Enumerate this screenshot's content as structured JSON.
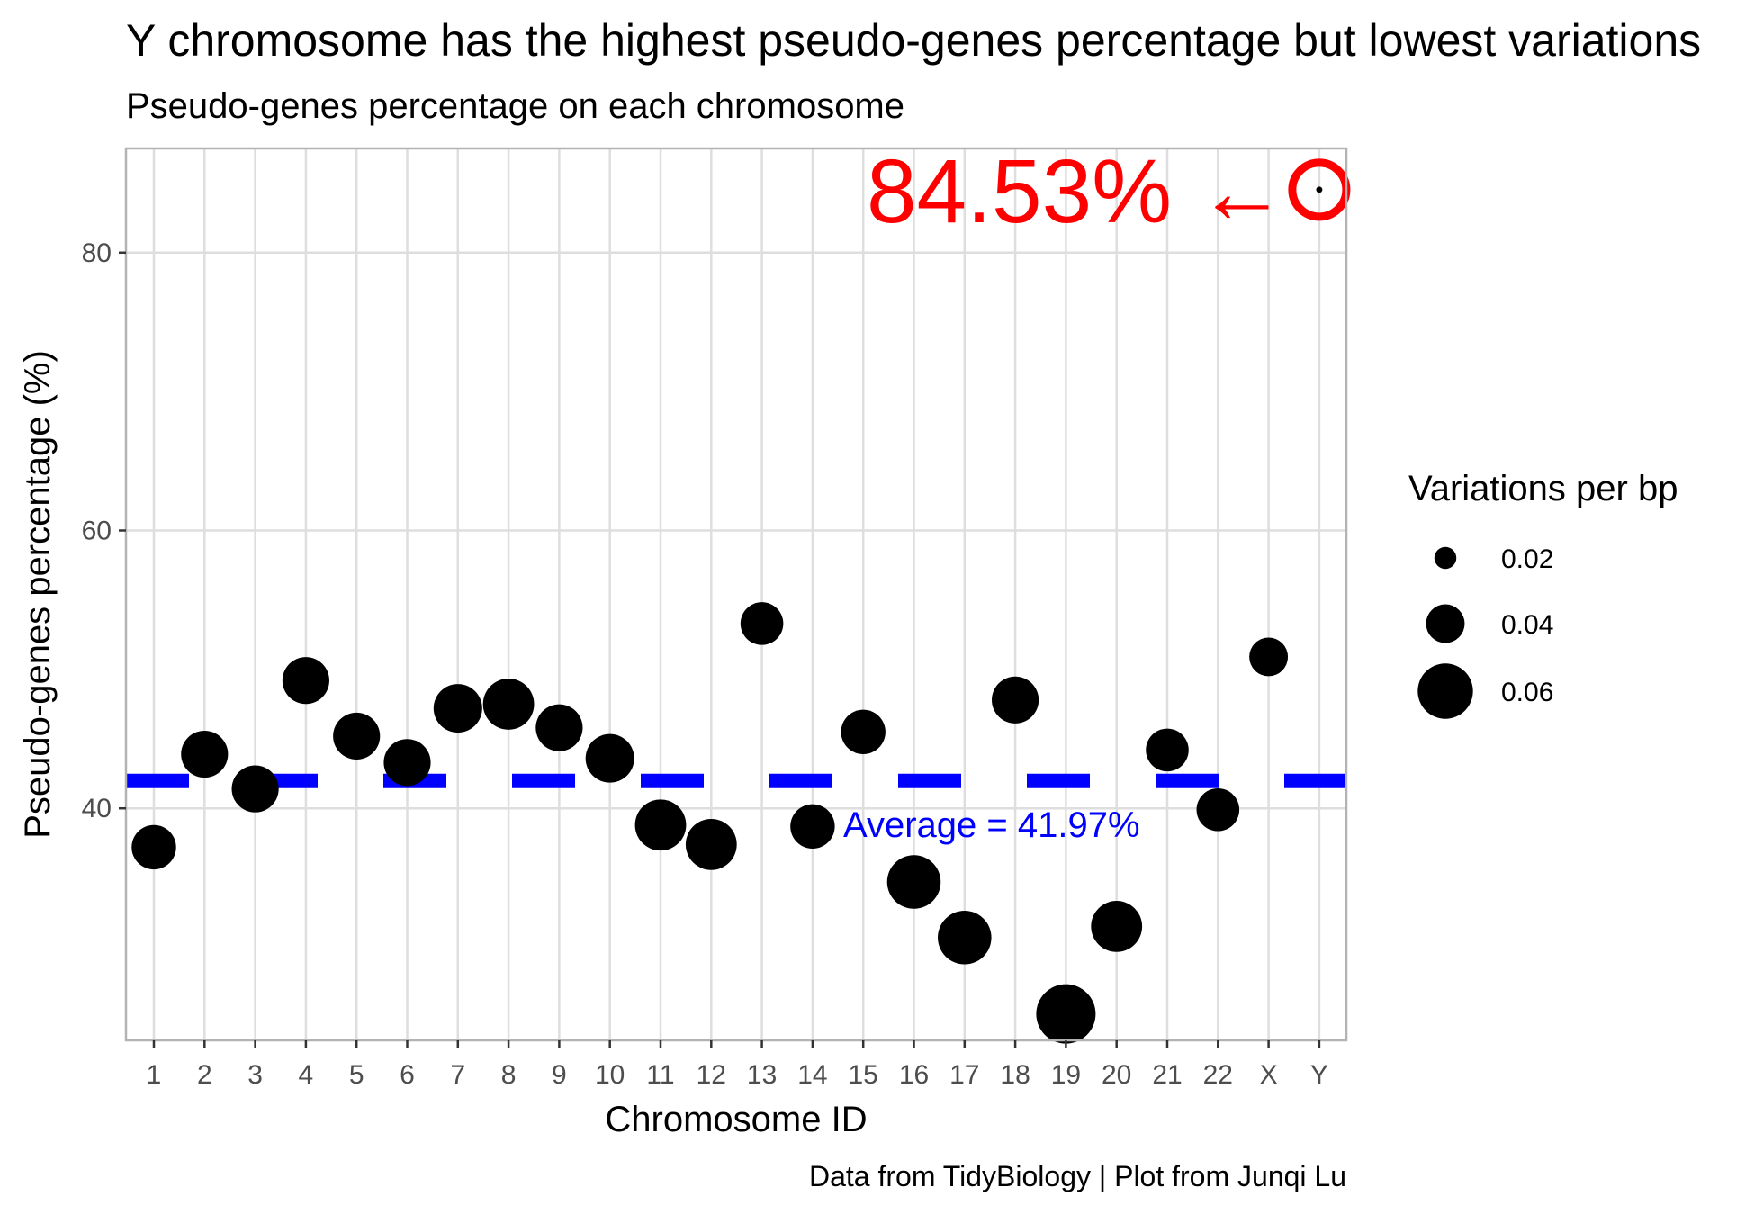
{
  "chart_data": {
    "type": "scatter",
    "title": "Y chromosome has the highest pseudo-genes percentage but lowest variations",
    "subtitle": "Pseudo-genes percentage on each chromosome",
    "xlabel": "Chromosome ID",
    "ylabel": "Pseudo-genes percentage (%)",
    "caption": "Data from TidyBiology | Plot from Junqi Lu",
    "categories": [
      "1",
      "2",
      "3",
      "4",
      "5",
      "6",
      "7",
      "8",
      "9",
      "10",
      "11",
      "12",
      "13",
      "14",
      "15",
      "16",
      "17",
      "18",
      "19",
      "20",
      "21",
      "22",
      "X",
      "Y"
    ],
    "y_ticks": [
      40,
      60,
      80
    ],
    "ylim": [
      23.3,
      87.5
    ],
    "grid": true,
    "points": [
      {
        "x": "1",
        "y": 37.2,
        "size": 0.047
      },
      {
        "x": "2",
        "y": 43.9,
        "size": 0.05
      },
      {
        "x": "3",
        "y": 41.4,
        "size": 0.05
      },
      {
        "x": "4",
        "y": 49.2,
        "size": 0.05
      },
      {
        "x": "5",
        "y": 45.2,
        "size": 0.05
      },
      {
        "x": "6",
        "y": 43.3,
        "size": 0.05
      },
      {
        "x": "7",
        "y": 47.2,
        "size": 0.052
      },
      {
        "x": "8",
        "y": 47.5,
        "size": 0.055
      },
      {
        "x": "9",
        "y": 45.8,
        "size": 0.05
      },
      {
        "x": "10",
        "y": 43.6,
        "size": 0.052
      },
      {
        "x": "11",
        "y": 38.8,
        "size": 0.055
      },
      {
        "x": "12",
        "y": 37.4,
        "size": 0.055
      },
      {
        "x": "13",
        "y": 53.3,
        "size": 0.045
      },
      {
        "x": "14",
        "y": 38.7,
        "size": 0.047
      },
      {
        "x": "15",
        "y": 45.5,
        "size": 0.047
      },
      {
        "x": "16",
        "y": 34.7,
        "size": 0.058
      },
      {
        "x": "17",
        "y": 30.7,
        "size": 0.058
      },
      {
        "x": "18",
        "y": 47.8,
        "size": 0.05
      },
      {
        "x": "19",
        "y": 25.2,
        "size": 0.065
      },
      {
        "x": "20",
        "y": 31.5,
        "size": 0.055
      },
      {
        "x": "21",
        "y": 44.2,
        "size": 0.045
      },
      {
        "x": "22",
        "y": 39.9,
        "size": 0.045
      },
      {
        "x": "X",
        "y": 50.9,
        "size": 0.04
      },
      {
        "x": "Y",
        "y": 84.53,
        "size": 0.001
      }
    ],
    "average": {
      "value": 41.97,
      "label": "Average = 41.97%",
      "color": "#0000ff"
    },
    "highlight": {
      "label": "84.53% ←",
      "x": "Y",
      "y": 84.53,
      "color": "#ff0000"
    },
    "legend": {
      "title": "Variations per bp",
      "position": "right",
      "items": [
        {
          "label": "0.02",
          "size": 0.02
        },
        {
          "label": "0.04",
          "size": 0.04
        },
        {
          "label": "0.06",
          "size": 0.06
        }
      ]
    },
    "colors": {
      "points": "#000000",
      "grid": "#dedede",
      "panel_border": "#b3b3b3"
    }
  }
}
